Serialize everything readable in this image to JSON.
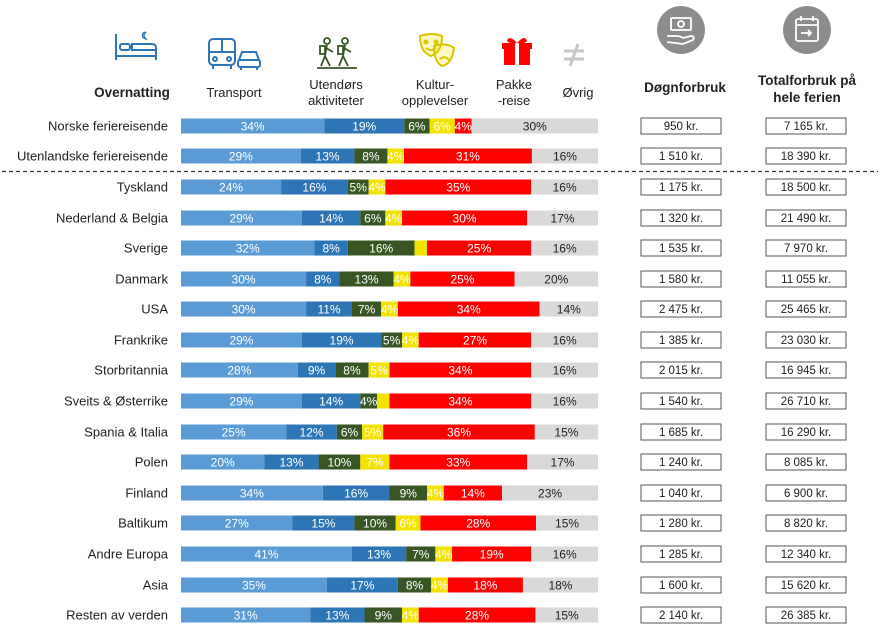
{
  "header": {
    "overnatting": "Overnatting",
    "transport": "Transport",
    "utendors_l1": "Utendørs",
    "utendors_l2": "aktiviteter",
    "kultur_l1": "Kultur-",
    "kultur_l2": "opplevelser",
    "pakke_l1": "Pakke",
    "pakke_l2": "-reise",
    "ovrig": "Øvrig",
    "dogn": "Døgnforbruk",
    "total_l1": "Totalforbruk på",
    "total_l2": "hele ferien"
  },
  "colors": {
    "overnatting": "#5b9bd5",
    "transport": "#2e75b6",
    "utendors": "#375623",
    "kultur": "#f2e200",
    "pakke": "#ff0000",
    "ovrig": "#d9d9d9",
    "icon_blue": "#2e75b6",
    "icon_green": "#375623",
    "icon_yellow": "#f2e200",
    "icon_red": "#ff0000",
    "icon_grey": "#c8c8c8",
    "circle": "#8c8c8c"
  },
  "icons": [
    "bed-icon",
    "bus-car-icon",
    "hikers-icon",
    "theater-masks-icon",
    "gift-box-icon",
    "not-equal-icon",
    "money-hand-icon",
    "calendar-icon"
  ],
  "chart_data": {
    "type": "bar",
    "stacked": true,
    "orientation": "horizontal",
    "categories": [
      "Norske feriereisende",
      "Utenlandske feriereisende",
      "Tyskland",
      "Nederland & Belgia",
      "Sverige",
      "Danmark",
      "USA",
      "Frankrike",
      "Storbritannia",
      "Sveits & Østerrike",
      "Spania & Italia",
      "Polen",
      "Finland",
      "Baltikum",
      "Andre Europa",
      "Asia",
      "Resten av verden"
    ],
    "series": [
      {
        "name": "Overnatting",
        "values": [
          34,
          29,
          24,
          29,
          32,
          30,
          30,
          29,
          28,
          29,
          25,
          20,
          34,
          27,
          41,
          35,
          31
        ]
      },
      {
        "name": "Transport",
        "values": [
          19,
          13,
          16,
          14,
          8,
          8,
          11,
          19,
          9,
          14,
          12,
          13,
          16,
          15,
          13,
          17,
          13
        ]
      },
      {
        "name": "Utendørs aktiviteter",
        "values": [
          6,
          8,
          5,
          6,
          16,
          13,
          7,
          5,
          8,
          4,
          6,
          10,
          9,
          10,
          7,
          8,
          9
        ]
      },
      {
        "name": "Kultur-opplevelser",
        "values": [
          6,
          4,
          4,
          4,
          3,
          4,
          4,
          4,
          5,
          3,
          5,
          7,
          4,
          6,
          4,
          4,
          4
        ]
      },
      {
        "name": "Pakke-reise",
        "values": [
          4,
          31,
          35,
          30,
          25,
          25,
          34,
          27,
          34,
          34,
          36,
          33,
          14,
          28,
          19,
          18,
          28
        ]
      },
      {
        "name": "Øvrig",
        "values": [
          30,
          16,
          16,
          17,
          16,
          20,
          14,
          16,
          16,
          16,
          15,
          17,
          23,
          15,
          16,
          18,
          15
        ]
      }
    ],
    "labels": [
      [
        "34%",
        "19%",
        "6%",
        "6%",
        "4%",
        "30%"
      ],
      [
        "29%",
        "13%",
        "8%",
        "4%",
        "31%",
        "16%"
      ],
      [
        "24%",
        "16%",
        "5%",
        "4%",
        "35%",
        "16%"
      ],
      [
        "29%",
        "14%",
        "6%",
        "4%",
        "30%",
        "17%"
      ],
      [
        "32%",
        "8%",
        "16%",
        "",
        "25%",
        "16%"
      ],
      [
        "30%",
        "8%",
        "13%",
        "4%",
        "25%",
        "20%"
      ],
      [
        "30%",
        "11%",
        "7%",
        "4%",
        "34%",
        "14%"
      ],
      [
        "29%",
        "19%",
        "5%",
        "4%",
        "27%",
        "16%"
      ],
      [
        "28%",
        "9%",
        "8%",
        "5%",
        "34%",
        "16%"
      ],
      [
        "29%",
        "14%",
        "4%",
        "",
        "34%",
        "16%"
      ],
      [
        "25%",
        "12%",
        "6%",
        "5%",
        "36%",
        "15%"
      ],
      [
        "20%",
        "13%",
        "10%",
        "7%",
        "33%",
        "17%"
      ],
      [
        "34%",
        "16%",
        "9%",
        "4%",
        "14%",
        "23%"
      ],
      [
        "27%",
        "15%",
        "10%",
        "6%",
        "28%",
        "15%"
      ],
      [
        "41%",
        "13%",
        "7%",
        "4%",
        "19%",
        "16%"
      ],
      [
        "35%",
        "17%",
        "8%",
        "4%",
        "18%",
        "18%"
      ],
      [
        "31%",
        "13%",
        "9%",
        "4%",
        "28%",
        "15%"
      ]
    ],
    "dognforbruk": [
      "950 kr.",
      "1 510 kr.",
      "1 175  kr.",
      "1 320 kr.",
      "1 535 kr.",
      "1 580 kr.",
      "2 475 kr.",
      "1 385 kr.",
      "2 015 kr.",
      "1 540 kr.",
      "1 685 kr.",
      "1 240 kr.",
      "1 040 kr.",
      "1 280 kr.",
      "1 285 kr.",
      "1 600 kr.",
      "2 140 kr."
    ],
    "totalforbruk": [
      "7 165 kr.",
      "18 390 kr.",
      "18 500 kr.",
      "21 490 kr.",
      "7 970 kr.",
      "11 055 kr.",
      "25 465 kr.",
      "23 030 kr.",
      "16 945 kr.",
      "26 710 kr.",
      "16 290 kr.",
      "8 085 kr.",
      "6 900 kr.",
      "8 820 kr.",
      "12 340 kr.",
      "15 620 kr.",
      "26 385 kr."
    ],
    "xlim": [
      0,
      100
    ],
    "divider_after_index": 1
  }
}
